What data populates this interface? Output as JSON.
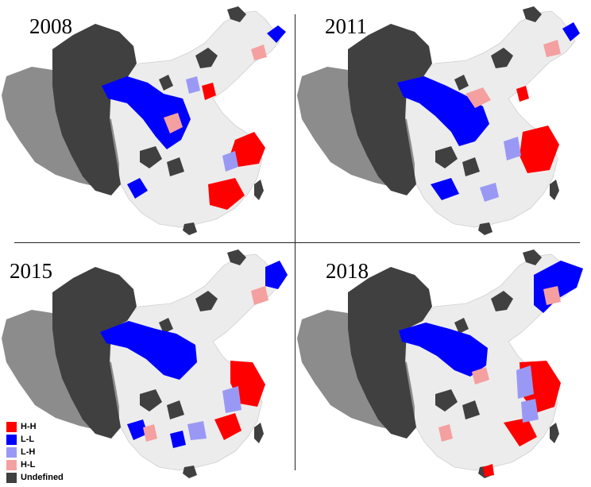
{
  "panels": [
    {
      "year": "2008"
    },
    {
      "year": "2011"
    },
    {
      "year": "2015"
    },
    {
      "year": "2018"
    }
  ],
  "legend": [
    {
      "label": "H-H",
      "color": "#ff0000"
    },
    {
      "label": "L-L",
      "color": "#0000ff"
    },
    {
      "label": "L-H",
      "color": "#9999f5"
    },
    {
      "label": "H-L",
      "color": "#f5a0a0"
    },
    {
      "label": "Undefined",
      "color": "#404040"
    }
  ],
  "colors": {
    "background_region": "#ececec",
    "outer_gray": "#8c8c8c",
    "region_border": "#cfcfcf"
  }
}
